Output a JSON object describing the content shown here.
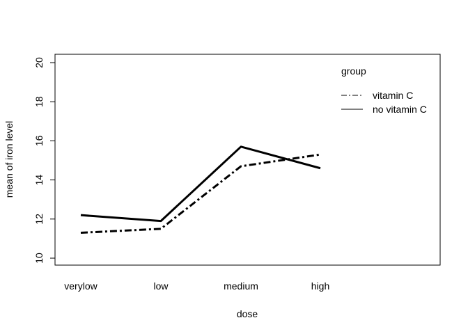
{
  "chart_data": {
    "type": "line",
    "title": "",
    "xlabel": "dose",
    "ylabel": "mean of iron level",
    "categories": [
      "verylow",
      "low",
      "medium",
      "high"
    ],
    "ylim": [
      10,
      20
    ],
    "yticks": [
      10,
      12,
      14,
      16,
      18,
      20
    ],
    "grid": false,
    "legend": {
      "title": "group",
      "placement": "top-right"
    },
    "series": [
      {
        "name": "vitamin C",
        "values": [
          11.3,
          11.5,
          14.7,
          15.3
        ],
        "line_style": "dashdot",
        "color": "#000000"
      },
      {
        "name": "no vitamin C",
        "values": [
          12.2,
          11.9,
          15.7,
          14.6
        ],
        "line_style": "solid",
        "color": "#000000"
      }
    ]
  }
}
